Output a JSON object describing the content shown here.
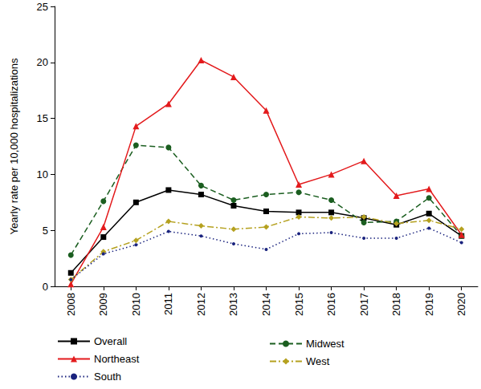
{
  "chart_data": {
    "type": "line",
    "y_label": "Yearly rate per 10,000 hospitalizations",
    "categories": [
      "2008",
      "2009",
      "2010",
      "2011",
      "2012",
      "2013",
      "2014",
      "2015",
      "2016",
      "2017",
      "2018",
      "2019",
      "2020"
    ],
    "series": [
      {
        "name": "Overall",
        "color": "#000000",
        "marker": "square",
        "line_style": "solid",
        "values": [
          1.2,
          4.4,
          7.5,
          8.6,
          8.2,
          7.2,
          6.7,
          6.6,
          6.6,
          6.1,
          5.5,
          6.5,
          4.5
        ]
      },
      {
        "name": "Midwest",
        "color": "#1b5e20",
        "marker": "circle",
        "line_style": "dashed",
        "values": [
          2.8,
          7.6,
          12.6,
          12.4,
          9.0,
          7.7,
          8.2,
          8.4,
          7.7,
          5.7,
          5.8,
          7.9,
          4.5
        ]
      },
      {
        "name": "Northeast",
        "color": "#e31a1c",
        "marker": "triangle",
        "line_style": "solid",
        "values": [
          0.2,
          5.3,
          14.3,
          16.3,
          20.2,
          18.7,
          15.7,
          9.1,
          10.0,
          11.2,
          8.1,
          8.7,
          4.6
        ]
      },
      {
        "name": "West",
        "color": "#b5a11f",
        "marker": "diamond",
        "line_style": "dashdot",
        "values": [
          0.6,
          3.1,
          4.1,
          5.8,
          5.4,
          5.1,
          5.3,
          6.2,
          6.1,
          6.2,
          5.6,
          5.9,
          5.1
        ]
      },
      {
        "name": "South",
        "color": "#1a237e",
        "marker": "small_circle",
        "line_style": "dotted",
        "values": [
          0.6,
          2.9,
          3.7,
          4.9,
          4.5,
          3.8,
          3.3,
          4.7,
          4.8,
          4.3,
          4.3,
          5.2,
          3.9
        ]
      }
    ],
    "ylim": [
      0,
      25
    ],
    "yticks": [
      0,
      5,
      10,
      15,
      20,
      25
    ],
    "grid": false,
    "legend": "bottom"
  }
}
